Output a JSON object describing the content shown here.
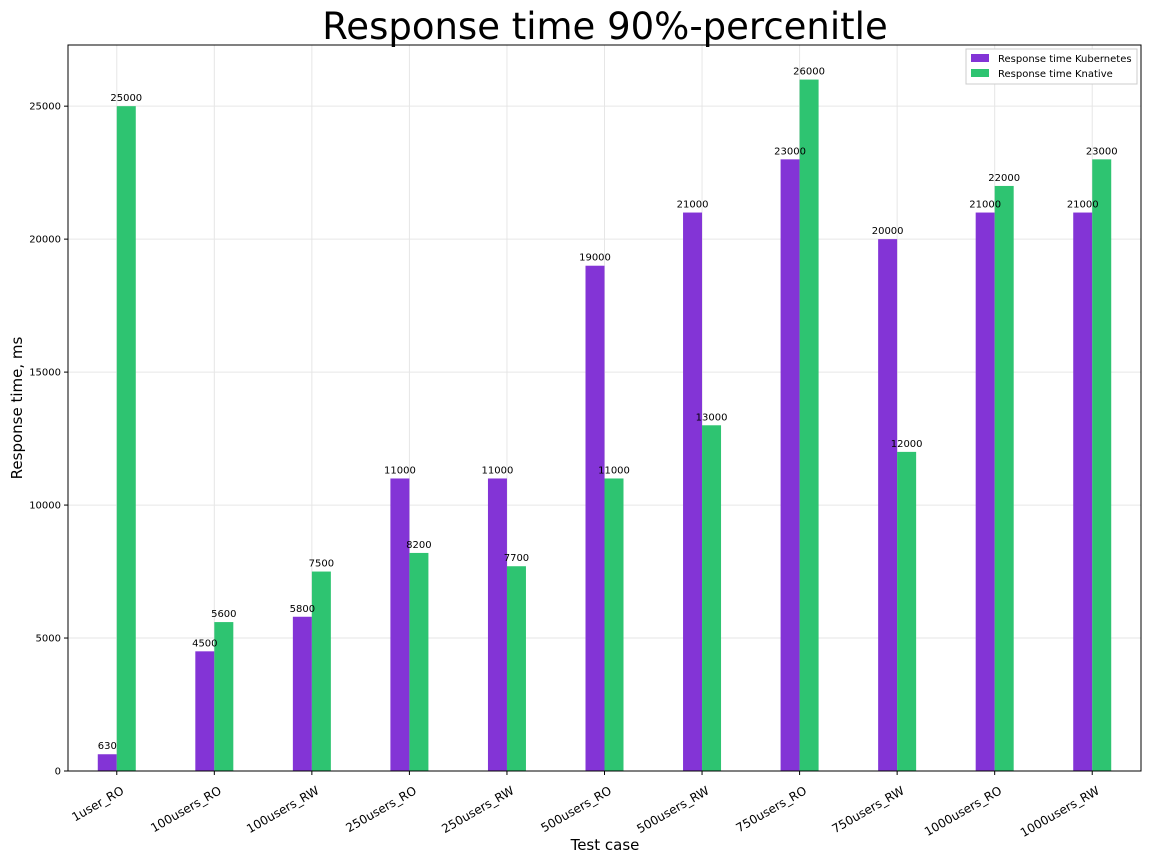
{
  "chart_data": {
    "type": "bar",
    "title": "Response time 90%-percenitle",
    "xlabel": "Test case",
    "ylabel": "Response time, ms",
    "categories": [
      "1user_RO",
      "100users_RO",
      "100users_RW",
      "250users_RO",
      "250users_RW",
      "500users_RO",
      "500users_RW",
      "750users_RO",
      "750users_RW",
      "1000users_RO",
      "1000users_RW"
    ],
    "series": [
      {
        "name": "Response time Kubernetes",
        "color": "#8334d6",
        "values": [
          630,
          4500,
          5800,
          11000,
          11000,
          19000,
          21000,
          23000,
          20000,
          21000,
          21000
        ]
      },
      {
        "name": "Response time Knative",
        "color": "#2ec471",
        "values": [
          25000,
          5600,
          7500,
          8200,
          7700,
          11000,
          13000,
          26000,
          12000,
          22000,
          23000
        ]
      }
    ],
    "ylim": [
      0,
      27300
    ],
    "yticks": [
      0,
      5000,
      10000,
      15000,
      20000,
      25000
    ],
    "grid": true,
    "legend_position": "top-right"
  }
}
